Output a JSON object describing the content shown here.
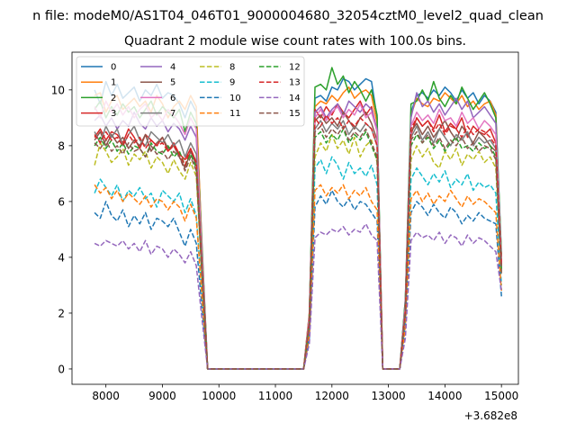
{
  "figure": {
    "suptitle": "n file: modeM0/AS1T04_046T01_9000004680_32054cztM0_level2_quad_clean",
    "offset_label": "+3.682e8"
  },
  "chart_data": {
    "type": "line",
    "title": "Quadrant 2 module wise count rates with 100.0s bins.",
    "xlabel": "",
    "ylabel": "",
    "xlim": [
      7400,
      15300
    ],
    "ylim": [
      -0.55,
      11.35
    ],
    "xticks": [
      8000,
      9000,
      10000,
      11000,
      12000,
      13000,
      14000,
      15000
    ],
    "yticks": [
      0,
      2,
      4,
      6,
      8,
      10
    ],
    "grid": false,
    "legend": {
      "placement": "top-left",
      "ncol": 4
    },
    "x": [
      7800,
      7900,
      8000,
      8100,
      8200,
      8300,
      8400,
      8500,
      8600,
      8700,
      8800,
      8900,
      9000,
      9100,
      9200,
      9300,
      9400,
      9500,
      9600,
      9700,
      9800,
      9900,
      11500,
      11600,
      11700,
      11800,
      11900,
      12000,
      12100,
      12200,
      12300,
      12400,
      12500,
      12600,
      12700,
      12800,
      12900,
      13200,
      13300,
      13400,
      13500,
      13600,
      13700,
      13800,
      13900,
      14000,
      14100,
      14200,
      14300,
      14400,
      14500,
      14600,
      14700,
      14800,
      14900,
      15000
    ],
    "series": [
      {
        "name": "0",
        "color": "#1f77b4",
        "dash": "solid",
        "values": [
          10.0,
          9.5,
          10.3,
          9.8,
          10.2,
          9.7,
          9.9,
          10.1,
          9.6,
          10.0,
          9.8,
          10.2,
          9.7,
          9.9,
          9.8,
          9.5,
          9.0,
          9.6,
          9.2,
          4.5,
          0,
          0,
          0,
          2.0,
          9.7,
          9.8,
          9.6,
          10.1,
          10.0,
          10.4,
          10.3,
          10.0,
          10.2,
          10.4,
          10.3,
          9.0,
          0,
          0,
          2.5,
          9.2,
          9.8,
          9.9,
          9.7,
          10.0,
          9.8,
          10.1,
          9.9,
          9.6,
          10.0,
          9.7,
          9.9,
          9.5,
          9.8,
          9.6,
          9.2,
          4.0
        ]
      },
      {
        "name": "1",
        "color": "#ff7f0e",
        "dash": "solid",
        "values": [
          9.8,
          9.9,
          9.2,
          9.6,
          9.8,
          9.3,
          9.5,
          9.7,
          9.4,
          9.6,
          9.2,
          9.8,
          9.5,
          9.0,
          9.4,
          9.6,
          9.3,
          9.8,
          9.4,
          4.4,
          0,
          0,
          0,
          2.0,
          9.4,
          9.6,
          9.5,
          9.8,
          9.6,
          9.9,
          10.1,
          9.7,
          9.9,
          10.0,
          9.8,
          8.8,
          0,
          0,
          2.4,
          9.1,
          9.7,
          9.5,
          9.4,
          9.7,
          9.6,
          9.9,
          9.7,
          9.5,
          9.8,
          9.4,
          9.6,
          9.3,
          9.5,
          9.6,
          9.1,
          3.9
        ]
      },
      {
        "name": "2",
        "color": "#2ca02c",
        "dash": "solid",
        "values": [
          9.3,
          9.6,
          9.0,
          9.4,
          9.1,
          9.5,
          9.2,
          9.4,
          9.0,
          9.3,
          9.6,
          9.1,
          9.4,
          9.2,
          9.0,
          9.3,
          8.5,
          9.2,
          8.8,
          4.3,
          0,
          0,
          0,
          1.9,
          10.1,
          10.2,
          10.0,
          10.8,
          10.2,
          10.5,
          9.9,
          10.3,
          10.0,
          9.6,
          10.0,
          9.1,
          0,
          0,
          2.5,
          9.5,
          9.6,
          10.0,
          9.6,
          10.3,
          9.7,
          9.4,
          9.8,
          9.5,
          10.1,
          9.7,
          9.3,
          9.6,
          9.9,
          9.5,
          9.0,
          4.1
        ]
      },
      {
        "name": "3",
        "color": "#d62728",
        "dash": "solid",
        "values": [
          8.3,
          8.6,
          8.2,
          8.5,
          8.4,
          8.1,
          8.6,
          8.3,
          7.9,
          8.4,
          8.2,
          8.0,
          8.3,
          7.8,
          8.1,
          7.7,
          7.5,
          7.9,
          7.4,
          3.6,
          0,
          0,
          0,
          1.7,
          9.3,
          9.0,
          9.4,
          9.1,
          9.5,
          9.2,
          9.0,
          9.3,
          9.6,
          9.1,
          9.4,
          8.5,
          0,
          0,
          2.2,
          8.4,
          9.0,
          8.7,
          8.9,
          8.6,
          9.1,
          8.5,
          8.8,
          8.6,
          9.0,
          8.3,
          8.7,
          8.5,
          8.4,
          8.6,
          8.1,
          3.7
        ]
      },
      {
        "name": "4",
        "color": "#9467bd",
        "dash": "solid",
        "values": [
          8.9,
          9.1,
          8.7,
          9.0,
          8.6,
          8.9,
          8.7,
          9.2,
          8.8,
          8.6,
          9.0,
          8.7,
          8.9,
          8.5,
          8.8,
          8.6,
          8.2,
          8.7,
          8.3,
          4.0,
          0,
          0,
          0,
          1.8,
          9.2,
          9.4,
          9.0,
          9.3,
          9.5,
          9.1,
          9.6,
          9.4,
          9.2,
          9.5,
          9.3,
          8.6,
          0,
          0,
          2.3,
          9.0,
          9.9,
          9.4,
          9.6,
          9.2,
          9.5,
          9.1,
          9.4,
          9.7,
          9.3,
          9.6,
          9.0,
          9.2,
          9.4,
          9.1,
          8.8,
          3.8
        ]
      },
      {
        "name": "5",
        "color": "#8c564b",
        "dash": "solid",
        "values": [
          8.2,
          8.5,
          8.0,
          8.4,
          8.1,
          8.3,
          7.9,
          8.2,
          8.0,
          8.4,
          7.8,
          8.1,
          8.3,
          7.9,
          8.0,
          7.6,
          7.2,
          7.8,
          7.3,
          3.5,
          0,
          0,
          0,
          1.6,
          8.9,
          9.1,
          8.8,
          9.0,
          8.7,
          9.2,
          8.9,
          8.6,
          9.0,
          9.2,
          8.8,
          8.2,
          0,
          0,
          2.1,
          8.5,
          8.8,
          8.4,
          8.7,
          8.3,
          8.6,
          8.9,
          8.5,
          8.2,
          8.7,
          8.4,
          8.1,
          8.5,
          8.3,
          8.0,
          7.8,
          3.6
        ]
      },
      {
        "name": "6",
        "color": "#e377c2",
        "dash": "solid",
        "values": [
          9.4,
          9.0,
          9.6,
          9.2,
          9.5,
          9.1,
          9.4,
          9.0,
          9.3,
          9.5,
          9.0,
          9.2,
          8.9,
          9.3,
          9.1,
          8.8,
          8.4,
          9.0,
          8.6,
          4.1,
          0,
          0,
          0,
          1.9,
          9.0,
          9.3,
          8.9,
          9.2,
          9.4,
          9.0,
          9.3,
          9.1,
          9.5,
          9.0,
          9.2,
          8.5,
          0,
          0,
          2.3,
          8.7,
          9.2,
          8.9,
          9.1,
          8.8,
          9.3,
          8.9,
          9.0,
          8.7,
          9.2,
          8.8,
          9.0,
          8.6,
          8.9,
          8.7,
          8.4,
          3.8
        ]
      },
      {
        "name": "7",
        "color": "#7f7f7f",
        "dash": "solid",
        "values": [
          8.5,
          8.1,
          8.7,
          8.3,
          8.6,
          8.0,
          8.4,
          8.7,
          8.2,
          8.0,
          8.5,
          8.3,
          8.1,
          8.4,
          8.0,
          8.2,
          7.6,
          8.1,
          7.7,
          3.7,
          0,
          0,
          0,
          1.7,
          8.6,
          8.9,
          8.5,
          8.8,
          8.6,
          8.9,
          8.4,
          8.7,
          8.5,
          8.8,
          8.6,
          8.0,
          0,
          0,
          2.1,
          8.3,
          8.7,
          8.2,
          8.5,
          8.1,
          8.6,
          8.3,
          8.0,
          8.4,
          8.2,
          8.5,
          8.0,
          8.3,
          8.1,
          8.2,
          7.9,
          3.5
        ]
      },
      {
        "name": "8",
        "color": "#bcbd22",
        "dash": "dash",
        "values": [
          7.3,
          8.1,
          7.8,
          7.4,
          7.6,
          7.9,
          7.3,
          7.7,
          7.5,
          7.8,
          7.2,
          7.6,
          7.4,
          7.0,
          7.5,
          7.1,
          6.8,
          7.4,
          6.9,
          3.3,
          0,
          0,
          0,
          1.6,
          7.6,
          8.1,
          7.8,
          8.4,
          7.9,
          8.2,
          7.7,
          8.3,
          7.6,
          8.0,
          8.2,
          7.4,
          0,
          0,
          1.9,
          7.5,
          8.0,
          7.6,
          7.9,
          7.4,
          7.2,
          7.8,
          7.5,
          7.9,
          7.3,
          7.7,
          7.5,
          7.8,
          7.4,
          7.6,
          7.2,
          3.4
        ]
      },
      {
        "name": "9",
        "color": "#17becf",
        "dash": "dash",
        "values": [
          6.3,
          6.8,
          6.5,
          6.2,
          6.6,
          6.0,
          6.4,
          6.2,
          6.5,
          6.1,
          6.3,
          5.8,
          6.4,
          6.2,
          6.0,
          6.3,
          5.6,
          6.1,
          5.5,
          2.7,
          0,
          0,
          0,
          1.3,
          7.2,
          7.5,
          7.0,
          7.6,
          7.3,
          6.8,
          7.4,
          7.0,
          7.2,
          6.9,
          7.3,
          6.6,
          0,
          0,
          1.7,
          6.8,
          7.2,
          6.9,
          6.6,
          7.0,
          6.7,
          7.1,
          6.5,
          6.8,
          6.6,
          7.0,
          6.4,
          6.7,
          6.5,
          6.6,
          6.3,
          3.0
        ]
      },
      {
        "name": "10",
        "color": "#1f77b4",
        "dash": "dash",
        "values": [
          5.6,
          5.4,
          6.0,
          5.5,
          5.3,
          5.7,
          5.1,
          5.5,
          5.2,
          5.6,
          5.0,
          5.4,
          5.3,
          5.1,
          5.4,
          4.9,
          4.4,
          5.0,
          4.5,
          2.2,
          0,
          0,
          0,
          1.1,
          5.8,
          6.2,
          5.9,
          6.4,
          6.0,
          5.8,
          6.1,
          5.7,
          6.0,
          5.9,
          5.6,
          5.3,
          0,
          0,
          1.4,
          5.6,
          6.0,
          5.8,
          5.5,
          5.9,
          5.6,
          5.4,
          5.8,
          5.6,
          5.2,
          5.5,
          5.3,
          5.6,
          5.4,
          5.3,
          5.2,
          2.6
        ]
      },
      {
        "name": "11",
        "color": "#ff7f0e",
        "dash": "dash",
        "values": [
          6.6,
          6.3,
          6.5,
          6.1,
          6.4,
          6.0,
          6.3,
          6.1,
          5.9,
          6.2,
          5.8,
          6.1,
          6.0,
          5.7,
          6.0,
          5.8,
          5.3,
          5.9,
          5.4,
          2.6,
          0,
          0,
          0,
          1.2,
          6.4,
          6.6,
          6.2,
          6.5,
          6.3,
          6.6,
          6.1,
          6.4,
          6.2,
          6.5,
          6.0,
          5.7,
          0,
          0,
          1.5,
          6.1,
          6.4,
          6.0,
          6.3,
          5.9,
          6.2,
          6.0,
          6.4,
          6.1,
          5.8,
          6.2,
          5.9,
          6.1,
          6.0,
          5.8,
          5.6,
          2.8
        ]
      },
      {
        "name": "12",
        "color": "#2ca02c",
        "dash": "dash",
        "values": [
          8.0,
          8.3,
          7.9,
          8.2,
          7.8,
          8.1,
          7.7,
          8.0,
          7.9,
          7.6,
          8.1,
          7.8,
          7.7,
          8.0,
          7.6,
          7.8,
          7.3,
          7.7,
          7.2,
          3.5,
          0,
          0,
          0,
          1.6,
          8.3,
          8.5,
          8.1,
          8.4,
          8.2,
          8.6,
          8.1,
          8.4,
          8.2,
          8.5,
          8.0,
          7.5,
          0,
          0,
          2.0,
          8.0,
          8.4,
          8.1,
          8.3,
          7.9,
          8.2,
          7.8,
          8.1,
          8.3,
          7.9,
          8.0,
          7.8,
          8.1,
          7.9,
          8.0,
          7.6,
          3.5
        ]
      },
      {
        "name": "13",
        "color": "#d62728",
        "dash": "dash",
        "values": [
          8.4,
          8.1,
          8.5,
          8.2,
          8.3,
          8.0,
          8.4,
          8.1,
          8.3,
          7.9,
          8.2,
          8.0,
          8.1,
          7.8,
          8.0,
          7.7,
          7.3,
          7.9,
          7.4,
          3.6,
          0,
          0,
          0,
          1.7,
          9.0,
          8.7,
          9.1,
          8.8,
          9.0,
          8.6,
          8.9,
          8.7,
          9.0,
          8.8,
          8.6,
          8.0,
          0,
          0,
          2.1,
          8.6,
          9.0,
          8.7,
          8.9,
          8.5,
          8.8,
          8.4,
          8.7,
          8.6,
          8.3,
          8.7,
          8.4,
          8.6,
          8.5,
          8.3,
          8.0,
          3.7
        ]
      },
      {
        "name": "14",
        "color": "#9467bd",
        "dash": "dash",
        "values": [
          4.5,
          4.4,
          4.6,
          4.5,
          4.4,
          4.6,
          4.3,
          4.5,
          4.2,
          4.6,
          4.1,
          4.4,
          4.3,
          4.0,
          4.3,
          4.1,
          3.8,
          4.2,
          3.7,
          1.8,
          0,
          0,
          0,
          0.9,
          4.7,
          4.9,
          4.8,
          5.0,
          4.9,
          5.1,
          4.8,
          5.0,
          4.9,
          5.2,
          4.8,
          4.6,
          0,
          0,
          1.1,
          4.6,
          4.9,
          4.7,
          4.8,
          4.6,
          4.9,
          4.5,
          4.8,
          4.7,
          4.4,
          4.8,
          4.5,
          4.7,
          4.6,
          4.4,
          4.2,
          2.8
        ]
      },
      {
        "name": "15",
        "color": "#8c564b",
        "dash": "dash",
        "values": [
          8.1,
          7.9,
          8.2,
          7.8,
          8.0,
          7.7,
          8.1,
          7.8,
          7.9,
          7.6,
          8.0,
          7.7,
          7.8,
          7.5,
          7.8,
          7.6,
          7.1,
          7.6,
          7.1,
          3.4,
          0,
          0,
          0,
          1.6,
          8.5,
          8.7,
          8.3,
          8.6,
          8.4,
          8.7,
          8.2,
          8.5,
          8.3,
          8.6,
          8.1,
          7.6,
          0,
          0,
          2.0,
          8.2,
          8.5,
          8.1,
          8.4,
          8.0,
          8.3,
          7.9,
          8.2,
          8.0,
          8.3,
          7.9,
          8.1,
          7.8,
          8.0,
          7.9,
          7.5,
          3.4
        ]
      }
    ]
  }
}
